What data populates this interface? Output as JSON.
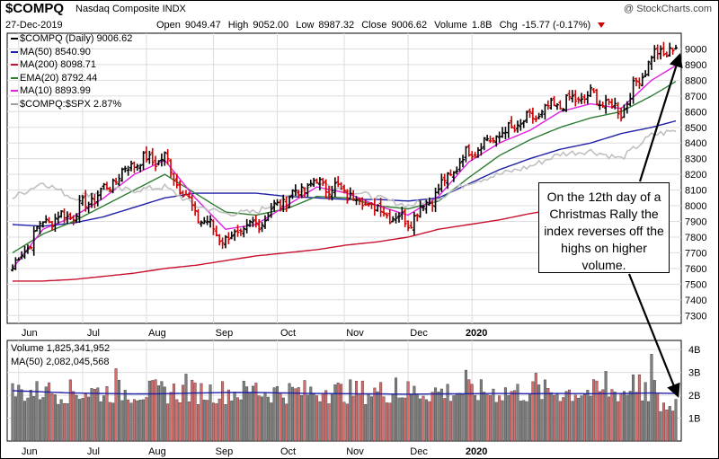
{
  "header": {
    "symbol": "$COMPQ",
    "name": "Nasdaq Composite INDX",
    "brand": "@ StockCharts.com",
    "date": "27-Dec-2019",
    "open_label": "Open",
    "open": "9049.47",
    "high_label": "High",
    "high": "9052.00",
    "low_label": "Low",
    "low": "8987.32",
    "close_label": "Close",
    "close": "9006.62",
    "volume_label": "Volume",
    "volume": "1.8B",
    "chg_label": "Chg",
    "chg": "-15.77 (-0.17%)"
  },
  "legend": [
    {
      "text": "$COMPQ (Daily) 9006.62",
      "color": "#000000"
    },
    {
      "text": "MA(50) 8540.90",
      "color": "#1f1fa8"
    },
    {
      "text": "MA(200) 8098.71",
      "color": "#c8102e"
    },
    {
      "text": "EMA(20) 8792.44",
      "color": "#2e7d32"
    },
    {
      "text": "MA(10) 8893.99",
      "color": "#e020e0"
    },
    {
      "text": "$COMPQ:$SPX 2.87%",
      "color": "#a0a0a0"
    }
  ],
  "volume_legend": [
    {
      "text": "Volume 1,825,341,952",
      "color": "#000000"
    },
    {
      "text": "MA(50) 2,082,045,568",
      "color": "#1f1fa8"
    }
  ],
  "annotation": "On the 12th day of a Christmas Rally the index reverses off the highs on higher volume.",
  "colors": {
    "up": "#000000",
    "down": "#cc0000",
    "ma50": "#1f1fa8",
    "ma200": "#c8102e",
    "ema20": "#2e7d32",
    "ma10": "#e020e0",
    "ratio": "#c0c0c0",
    "vol_up": "#7f7f7f",
    "vol_down": "#d96b6b",
    "grid": "#dddddd"
  },
  "chart_data": [
    {
      "type": "candlestick",
      "title": "$COMPQ Nasdaq Composite INDX",
      "ylim": [
        7250,
        9100
      ],
      "yticks": [
        7300,
        7400,
        7500,
        7600,
        7700,
        7800,
        7900,
        8000,
        8100,
        8200,
        8300,
        8400,
        8500,
        8600,
        8700,
        8800,
        8900,
        9000
      ],
      "month_labels": [
        "Jun",
        "Jul",
        "Aug",
        "Sep",
        "Oct",
        "Nov",
        "Dec",
        "2020"
      ],
      "grid": true,
      "x": [
        0,
        10,
        20,
        30,
        40,
        50,
        60,
        70,
        80,
        90,
        100,
        110,
        120,
        130,
        140,
        150,
        160,
        170,
        180,
        190,
        200,
        210,
        218
      ],
      "close": [
        7600,
        7900,
        7950,
        8100,
        8280,
        8300,
        7950,
        7780,
        7880,
        8050,
        8150,
        8080,
        7980,
        7900,
        8100,
        8350,
        8450,
        8550,
        8650,
        8700,
        8600,
        8950,
        9006.62
      ],
      "series": [
        {
          "name": "MA(50)",
          "values": [
            7880,
            7870,
            7890,
            7930,
            7990,
            8050,
            8080,
            8080,
            8080,
            8060,
            8050,
            8040,
            8040,
            8030,
            8050,
            8140,
            8230,
            8300,
            8360,
            8400,
            8460,
            8500,
            8540.9
          ]
        },
        {
          "name": "MA(200)",
          "values": [
            7520,
            7520,
            7530,
            7550,
            7570,
            7600,
            7620,
            7650,
            7680,
            7700,
            7720,
            7750,
            7770,
            7800,
            7850,
            7880,
            7910,
            7950,
            7980,
            8010,
            8040,
            8070,
            8098.71
          ]
        },
        {
          "name": "EMA(20)",
          "values": [
            7700,
            7820,
            7900,
            8000,
            8100,
            8200,
            8080,
            7960,
            7940,
            7980,
            8060,
            8050,
            8000,
            7980,
            8030,
            8180,
            8320,
            8420,
            8500,
            8560,
            8600,
            8700,
            8792.44
          ]
        },
        {
          "name": "MA(10)",
          "values": [
            7600,
            7850,
            7930,
            8050,
            8200,
            8290,
            8050,
            7850,
            7880,
            8000,
            8120,
            8080,
            8000,
            7940,
            8060,
            8280,
            8400,
            8480,
            8600,
            8650,
            8620,
            8800,
            8893.99
          ]
        },
        {
          "name": "$COMPQ:$SPX",
          "values": [
            8050,
            8150,
            8050,
            8100,
            8100,
            8120,
            8000,
            7950,
            7960,
            8050,
            8150,
            8100,
            8050,
            8000,
            8050,
            8150,
            8200,
            8250,
            8330,
            8350,
            8300,
            8450,
            8480
          ]
        }
      ]
    },
    {
      "type": "bar",
      "title": "Volume",
      "ylim": [
        0,
        4.4
      ],
      "ytick_labels": [
        "1B",
        "2B",
        "3B",
        "4B"
      ],
      "yticks": [
        1,
        2,
        3,
        4
      ],
      "month_labels": [
        "Jun",
        "Jul",
        "Aug",
        "Sep",
        "Oct",
        "Nov",
        "Dec",
        "2020"
      ],
      "last_volume": 1.825,
      "ma50_values": [
        2.2,
        2.15,
        2.1,
        2.08,
        2.06,
        2.07,
        2.1,
        2.12,
        2.12,
        2.1,
        2.08,
        2.07,
        2.06,
        2.05,
        2.06,
        2.07,
        2.08,
        2.07,
        2.08,
        2.07,
        2.08,
        2.1,
        2.082
      ]
    }
  ]
}
